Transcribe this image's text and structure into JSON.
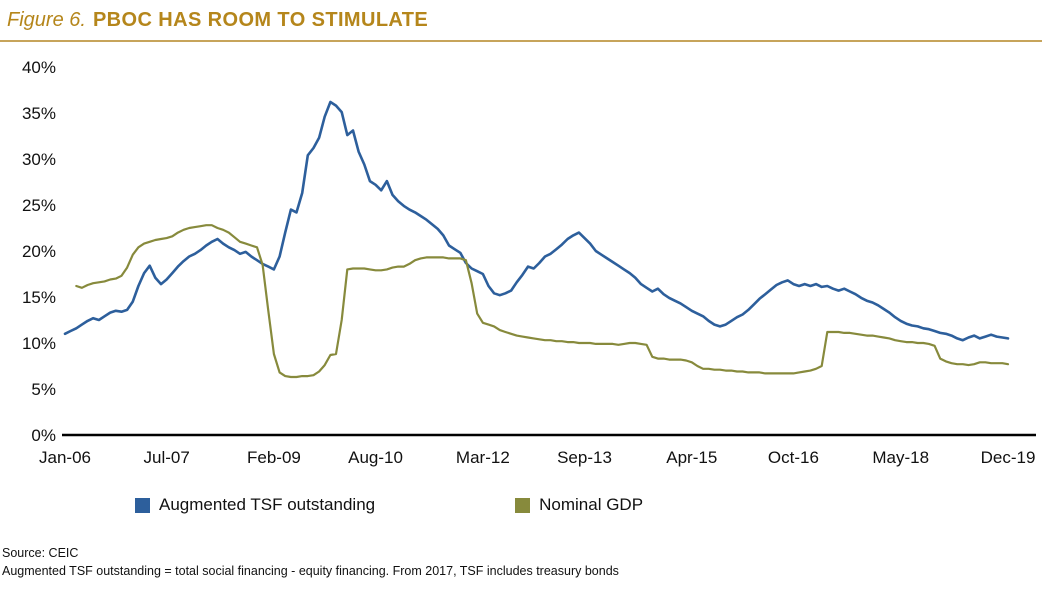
{
  "header": {
    "figure_label": "Figure 6.",
    "title": "PBOC HAS ROOM TO STIMULATE"
  },
  "footer": {
    "source": "Source: CEIC",
    "note": "Augmented TSF outstanding = total social financing - equity financing. From 2017, TSF includes treasury bonds"
  },
  "colors": {
    "accent_gold": "#B5861B",
    "rule_gold": "#C7A45B",
    "axis": "#000000",
    "tsf_blue": "#2D5F9C",
    "gdp_olive": "#878A3C"
  },
  "chart_data": {
    "type": "line",
    "title": "Figure 6. PBOC HAS ROOM TO STIMULATE",
    "xlabel": "",
    "ylabel": "",
    "grid": false,
    "legend_position": "bottom",
    "x_unit": "month (0 = Jan-2006, monthly steps to Dec-2019)",
    "x_range_months": [
      0,
      167
    ],
    "x_ticks": [
      {
        "label": "Jan-06",
        "month": 0
      },
      {
        "label": "Jul-07",
        "month": 18
      },
      {
        "label": "Feb-09",
        "month": 37
      },
      {
        "label": "Aug-10",
        "month": 55
      },
      {
        "label": "Mar-12",
        "month": 74
      },
      {
        "label": "Sep-13",
        "month": 92
      },
      {
        "label": "Apr-15",
        "month": 111
      },
      {
        "label": "Oct-16",
        "month": 129
      },
      {
        "label": "May-18",
        "month": 148
      },
      {
        "label": "Dec-19",
        "month": 167
      }
    ],
    "ylim": [
      0,
      40
    ],
    "y_ticks": [
      0,
      5,
      10,
      15,
      20,
      25,
      30,
      35,
      40
    ],
    "y_tick_suffix": "%",
    "series": [
      {
        "name": "Augmented TSF outstanding",
        "color": "#2D5F9C",
        "width": 2.6,
        "values": [
          11.0,
          11.3,
          11.6,
          12.0,
          12.4,
          12.7,
          12.5,
          12.9,
          13.3,
          13.5,
          13.4,
          13.6,
          14.5,
          16.2,
          17.6,
          18.4,
          17.1,
          16.4,
          16.9,
          17.6,
          18.3,
          18.9,
          19.4,
          19.7,
          20.1,
          20.6,
          21.0,
          21.3,
          20.8,
          20.4,
          20.1,
          19.7,
          19.9,
          19.4,
          19.0,
          18.6,
          18.3,
          18.0,
          19.4,
          22.0,
          24.5,
          24.2,
          26.3,
          30.4,
          31.2,
          32.3,
          34.6,
          36.2,
          35.8,
          35.1,
          32.6,
          33.1,
          30.8,
          29.4,
          27.6,
          27.2,
          26.6,
          27.6,
          26.1,
          25.4,
          24.9,
          24.5,
          24.2,
          23.8,
          23.4,
          22.9,
          22.4,
          21.7,
          20.6,
          20.2,
          19.8,
          18.7,
          18.1,
          17.8,
          17.5,
          16.2,
          15.4,
          15.2,
          15.4,
          15.7,
          16.6,
          17.4,
          18.3,
          18.1,
          18.7,
          19.4,
          19.7,
          20.2,
          20.7,
          21.3,
          21.7,
          22.0,
          21.4,
          20.8,
          20.0,
          19.6,
          19.2,
          18.8,
          18.4,
          18.0,
          17.6,
          17.1,
          16.4,
          16.0,
          15.6,
          15.9,
          15.3,
          14.9,
          14.6,
          14.3,
          13.9,
          13.5,
          13.2,
          12.9,
          12.4,
          12.0,
          11.8,
          12.0,
          12.4,
          12.8,
          13.1,
          13.6,
          14.2,
          14.8,
          15.3,
          15.8,
          16.3,
          16.6,
          16.8,
          16.4,
          16.2,
          16.4,
          16.2,
          16.4,
          16.1,
          16.2,
          15.9,
          15.7,
          15.9,
          15.6,
          15.3,
          14.9,
          14.6,
          14.4,
          14.1,
          13.7,
          13.3,
          12.8,
          12.4,
          12.1,
          11.9,
          11.8,
          11.6,
          11.5,
          11.3,
          11.1,
          11.0,
          10.8,
          10.5,
          10.3,
          10.6,
          10.8,
          10.5,
          10.7,
          10.9,
          10.7,
          10.6,
          10.5
        ]
      },
      {
        "name": "Nominal GDP",
        "color": "#878A3C",
        "width": 2.2,
        "values": [
          null,
          null,
          16.2,
          16.0,
          16.3,
          16.5,
          16.6,
          16.7,
          16.9,
          17.0,
          17.3,
          18.2,
          19.6,
          20.4,
          20.8,
          21.0,
          21.2,
          21.3,
          21.4,
          21.6,
          22.0,
          22.3,
          22.5,
          22.6,
          22.7,
          22.8,
          22.8,
          22.5,
          22.3,
          22.0,
          21.5,
          21.0,
          20.8,
          20.6,
          20.4,
          18.5,
          13.5,
          8.8,
          6.8,
          6.4,
          6.3,
          6.3,
          6.4,
          6.4,
          6.5,
          6.9,
          7.6,
          8.7,
          8.8,
          12.5,
          18.0,
          18.1,
          18.1,
          18.1,
          18.0,
          17.9,
          17.9,
          18.0,
          18.2,
          18.3,
          18.3,
          18.6,
          19.0,
          19.2,
          19.3,
          19.3,
          19.3,
          19.3,
          19.2,
          19.2,
          19.2,
          19.0,
          16.5,
          13.2,
          12.2,
          12.0,
          11.8,
          11.4,
          11.2,
          11.0,
          10.8,
          10.7,
          10.6,
          10.5,
          10.4,
          10.3,
          10.3,
          10.2,
          10.2,
          10.1,
          10.1,
          10.0,
          10.0,
          10.0,
          9.9,
          9.9,
          9.9,
          9.9,
          9.8,
          9.9,
          10.0,
          10.0,
          9.9,
          9.8,
          8.5,
          8.3,
          8.3,
          8.2,
          8.2,
          8.2,
          8.1,
          7.9,
          7.5,
          7.2,
          7.2,
          7.1,
          7.1,
          7.0,
          7.0,
          6.9,
          6.9,
          6.8,
          6.8,
          6.8,
          6.7,
          6.7,
          6.7,
          6.7,
          6.7,
          6.7,
          6.8,
          6.9,
          7.0,
          7.2,
          7.5,
          11.2,
          11.2,
          11.2,
          11.1,
          11.1,
          11.0,
          10.9,
          10.8,
          10.8,
          10.7,
          10.6,
          10.5,
          10.3,
          10.2,
          10.1,
          10.1,
          10.0,
          10.0,
          9.9,
          9.7,
          8.3,
          8.0,
          7.8,
          7.7,
          7.7,
          7.6,
          7.7,
          7.9,
          7.9,
          7.8,
          7.8,
          7.8,
          7.7
        ]
      }
    ]
  }
}
